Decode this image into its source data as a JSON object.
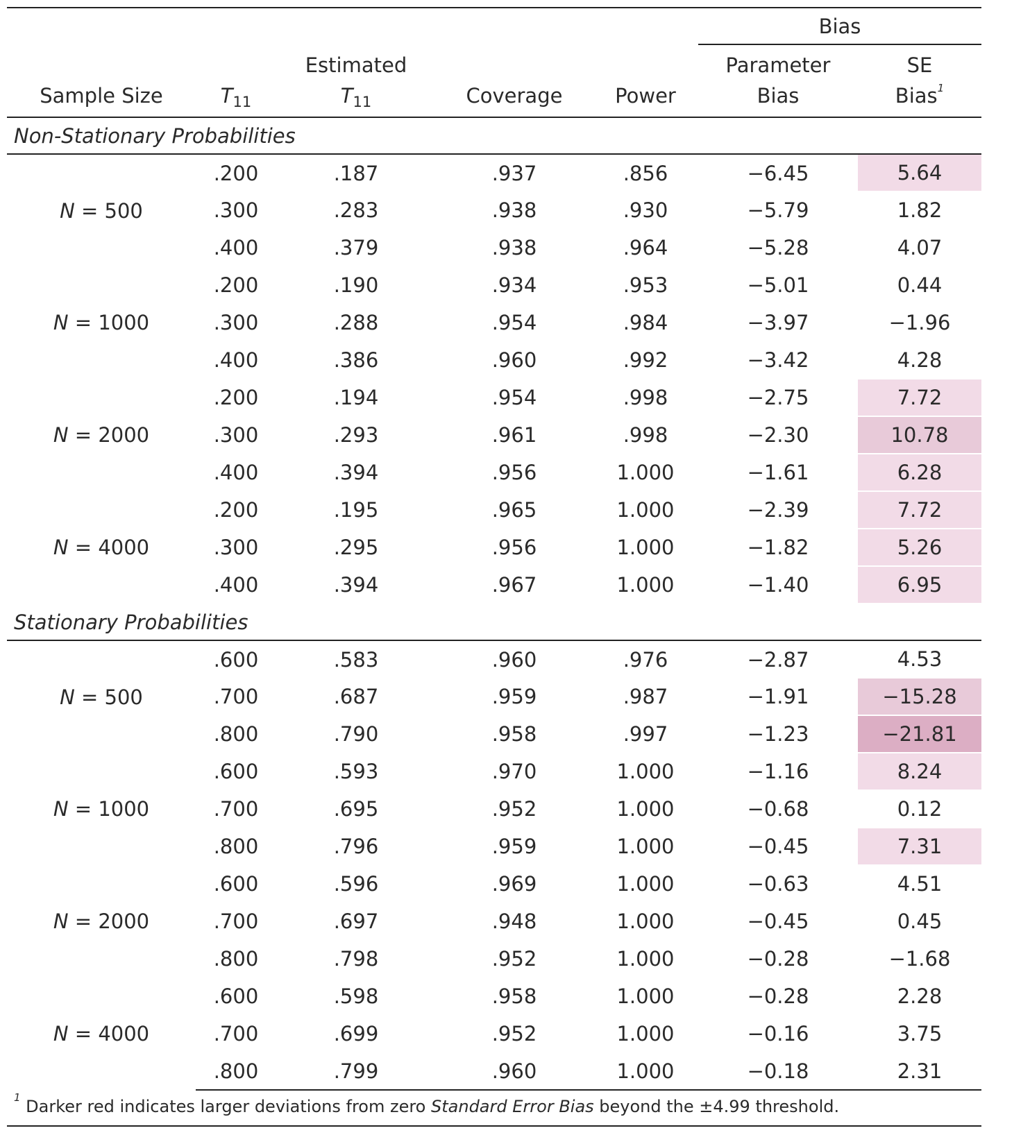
{
  "header": {
    "group_label": "Bias",
    "columns": {
      "sample_size": "Sample Size",
      "t11_symbol": "T",
      "t11_sub": "11",
      "estimated": "Estimated",
      "coverage": "Coverage",
      "power": "Power",
      "param_bias_1": "Parameter",
      "param_bias_2": "Bias",
      "se_bias_1": "SE",
      "se_bias_2": "Bias",
      "se_bias_note": "1"
    }
  },
  "sections": [
    {
      "title": "Non-Stationary Probabilities",
      "groups": [
        {
          "n_label": "N",
          "n_value": "= 500",
          "rows": [
            {
              "t11": ".200",
              "est": ".187",
              "coverage": ".937",
              "power": ".856",
              "param_bias": "−6.45",
              "se_bias": "5.64",
              "highlight": 1
            },
            {
              "t11": ".300",
              "est": ".283",
              "coverage": ".938",
              "power": ".930",
              "param_bias": "−5.79",
              "se_bias": "1.82",
              "highlight": 0
            },
            {
              "t11": ".400",
              "est": ".379",
              "coverage": ".938",
              "power": ".964",
              "param_bias": "−5.28",
              "se_bias": "4.07",
              "highlight": 0
            }
          ]
        },
        {
          "n_label": "N",
          "n_value": "= 1000",
          "rows": [
            {
              "t11": ".200",
              "est": ".190",
              "coverage": ".934",
              "power": ".953",
              "param_bias": "−5.01",
              "se_bias": "0.44",
              "highlight": 0
            },
            {
              "t11": ".300",
              "est": ".288",
              "coverage": ".954",
              "power": ".984",
              "param_bias": "−3.97",
              "se_bias": "−1.96",
              "highlight": 0
            },
            {
              "t11": ".400",
              "est": ".386",
              "coverage": ".960",
              "power": ".992",
              "param_bias": "−3.42",
              "se_bias": "4.28",
              "highlight": 0
            }
          ]
        },
        {
          "n_label": "N",
          "n_value": "= 2000",
          "rows": [
            {
              "t11": ".200",
              "est": ".194",
              "coverage": ".954",
              "power": ".998",
              "param_bias": "−2.75",
              "se_bias": "7.72",
              "highlight": 1
            },
            {
              "t11": ".300",
              "est": ".293",
              "coverage": ".961",
              "power": ".998",
              "param_bias": "−2.30",
              "se_bias": "10.78",
              "highlight": 2
            },
            {
              "t11": ".400",
              "est": ".394",
              "coverage": ".956",
              "power": "1.000",
              "param_bias": "−1.61",
              "se_bias": "6.28",
              "highlight": 1
            }
          ]
        },
        {
          "n_label": "N",
          "n_value": "= 4000",
          "rows": [
            {
              "t11": ".200",
              "est": ".195",
              "coverage": ".965",
              "power": "1.000",
              "param_bias": "−2.39",
              "se_bias": "7.72",
              "highlight": 1
            },
            {
              "t11": ".300",
              "est": ".295",
              "coverage": ".956",
              "power": "1.000",
              "param_bias": "−1.82",
              "se_bias": "5.26",
              "highlight": 1
            },
            {
              "t11": ".400",
              "est": ".394",
              "coverage": ".967",
              "power": "1.000",
              "param_bias": "−1.40",
              "se_bias": "6.95",
              "highlight": 1
            }
          ]
        }
      ]
    },
    {
      "title": "Stationary Probabilities",
      "groups": [
        {
          "n_label": "N",
          "n_value": "= 500",
          "rows": [
            {
              "t11": ".600",
              "est": ".583",
              "coverage": ".960",
              "power": ".976",
              "param_bias": "−2.87",
              "se_bias": "4.53",
              "highlight": 0
            },
            {
              "t11": ".700",
              "est": ".687",
              "coverage": ".959",
              "power": ".987",
              "param_bias": "−1.91",
              "se_bias": "−15.28",
              "highlight": 2
            },
            {
              "t11": ".800",
              "est": ".790",
              "coverage": ".958",
              "power": ".997",
              "param_bias": "−1.23",
              "se_bias": "−21.81",
              "highlight": 3
            }
          ]
        },
        {
          "n_label": "N",
          "n_value": "= 1000",
          "rows": [
            {
              "t11": ".600",
              "est": ".593",
              "coverage": ".970",
              "power": "1.000",
              "param_bias": "−1.16",
              "se_bias": "8.24",
              "highlight": 1
            },
            {
              "t11": ".700",
              "est": ".695",
              "coverage": ".952",
              "power": "1.000",
              "param_bias": "−0.68",
              "se_bias": "0.12",
              "highlight": 0
            },
            {
              "t11": ".800",
              "est": ".796",
              "coverage": ".959",
              "power": "1.000",
              "param_bias": "−0.45",
              "se_bias": "7.31",
              "highlight": 1
            }
          ]
        },
        {
          "n_label": "N",
          "n_value": "= 2000",
          "rows": [
            {
              "t11": ".600",
              "est": ".596",
              "coverage": ".969",
              "power": "1.000",
              "param_bias": "−0.63",
              "se_bias": "4.51",
              "highlight": 0
            },
            {
              "t11": ".700",
              "est": ".697",
              "coverage": ".948",
              "power": "1.000",
              "param_bias": "−0.45",
              "se_bias": "0.45",
              "highlight": 0
            },
            {
              "t11": ".800",
              "est": ".798",
              "coverage": ".952",
              "power": "1.000",
              "param_bias": "−0.28",
              "se_bias": "−1.68",
              "highlight": 0
            }
          ]
        },
        {
          "n_label": "N",
          "n_value": "= 4000",
          "rows": [
            {
              "t11": ".600",
              "est": ".598",
              "coverage": ".958",
              "power": "1.000",
              "param_bias": "−0.28",
              "se_bias": "2.28",
              "highlight": 0
            },
            {
              "t11": ".700",
              "est": ".699",
              "coverage": ".952",
              "power": "1.000",
              "param_bias": "−0.16",
              "se_bias": "3.75",
              "highlight": 0
            },
            {
              "t11": ".800",
              "est": ".799",
              "coverage": ".960",
              "power": "1.000",
              "param_bias": "−0.18",
              "se_bias": "2.31",
              "highlight": 0
            }
          ]
        }
      ]
    }
  ],
  "footnote": {
    "marker": "1",
    "text_before": " Darker red indicates larger deviations from zero ",
    "text_italic": "Standard Error Bias",
    "text_after": " beyond the ±4.99 threshold."
  },
  "colors": {
    "highlight_light": "#f2dbe7",
    "highlight_medium": "#e8cad9",
    "highlight_dark": "#dcaec4"
  }
}
